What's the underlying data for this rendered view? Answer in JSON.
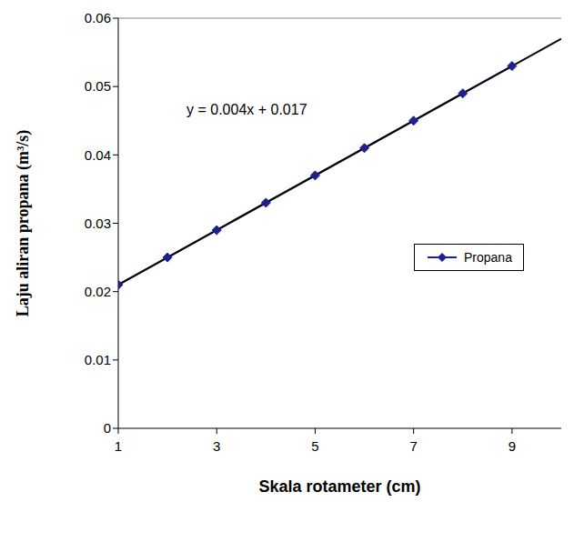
{
  "chart_data": {
    "type": "line",
    "annotation": "y = 0.004x + 0.017",
    "xlabel": "Skala rotameter (cm)",
    "ylabel": "Laju aliran propana (m³/s)",
    "series": [
      {
        "name": "Propana",
        "color": "#1f1f8f",
        "marker": "diamond",
        "x": [
          1,
          2,
          3,
          4,
          5,
          6,
          7,
          8,
          9
        ],
        "values": [
          0.021,
          0.025,
          0.029,
          0.033,
          0.037,
          0.041,
          0.045,
          0.049,
          0.053
        ]
      }
    ],
    "trendline": {
      "color": "#000000",
      "x": [
        1,
        10
      ],
      "values": [
        0.021,
        0.057
      ]
    },
    "xlim": [
      1,
      10
    ],
    "xticks": [
      1,
      3,
      5,
      7,
      9
    ],
    "ylim": [
      0,
      0.06
    ],
    "yticks": [
      0,
      0.01,
      0.02,
      0.03,
      0.04,
      0.05,
      0.06
    ],
    "grid": false,
    "legend": "right"
  }
}
